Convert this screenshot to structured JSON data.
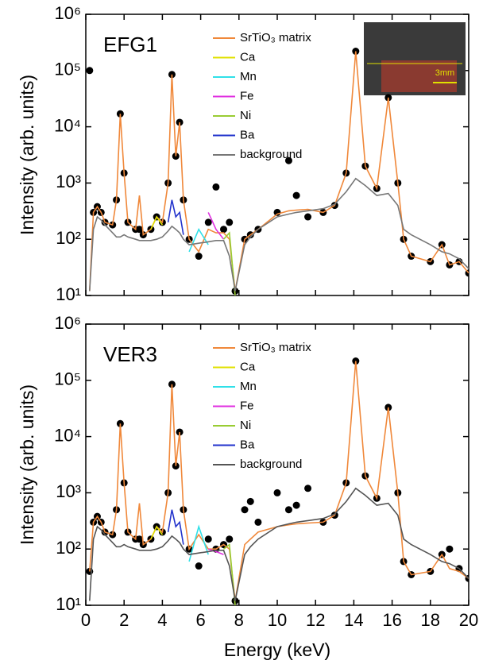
{
  "chart_data": [
    {
      "type": "line",
      "panel_label": "EFG1",
      "ylabel": "Intensity (arb. units)",
      "inset_label": "3mm",
      "log_y": true,
      "legend": "top-center",
      "xlim": [
        0,
        20
      ],
      "xticks": [
        0,
        2,
        4,
        6,
        8,
        10,
        12,
        14,
        16,
        18,
        20
      ],
      "ylim": [
        10,
        1000000
      ],
      "yticks": [
        {
          "value": 10,
          "label": "10¹"
        },
        {
          "value": 100,
          "label": "10²"
        },
        {
          "value": 1000,
          "label": "10³"
        },
        {
          "value": 10000,
          "label": "10⁴"
        },
        {
          "value": 100000,
          "label": "10⁵"
        },
        {
          "value": 1000000,
          "label": "10⁶"
        }
      ],
      "x": [
        0.2,
        0.4,
        0.6,
        0.8,
        1.0,
        1.4,
        1.6,
        1.8,
        2.0,
        2.2,
        2.6,
        2.8,
        3.0,
        3.4,
        3.7,
        4.0,
        4.3,
        4.5,
        4.7,
        4.9,
        5.1,
        5.4,
        5.9,
        6.4,
        6.8,
        7.2,
        7.5,
        7.8,
        8.3,
        8.6,
        9.0,
        10.0,
        10.6,
        11.0,
        11.6,
        12.4,
        13.0,
        13.6,
        14.1,
        14.6,
        15.2,
        15.8,
        16.3,
        16.6,
        17.0,
        18.0,
        18.6,
        19.0,
        19.5,
        20.0
      ],
      "series": [
        {
          "markers": true,
          "color": "#000000",
          "values": [
            100000,
            300,
            380,
            300,
            200,
            180,
            500,
            17000,
            1500,
            200,
            150,
            150,
            120,
            150,
            250,
            200,
            1000,
            85000,
            3000,
            12000,
            500,
            100,
            50,
            200,
            850,
            150,
            200,
            12,
            100,
            120,
            150,
            300,
            2500,
            600,
            250,
            300,
            400,
            1500,
            220000,
            2000,
            800,
            33000,
            1000,
            100,
            50,
            40,
            80,
            35,
            40,
            25
          ]
        },
        {
          "name": "SrTiO₃ matrix",
          "color": "#f0883a",
          "values": [
            12,
            300,
            380,
            300,
            200,
            180,
            500,
            17000,
            1500,
            200,
            150,
            600,
            120,
            150,
            250,
            200,
            1000,
            85000,
            3000,
            12000,
            500,
            100,
            60,
            150,
            130,
            130,
            100,
            12,
            100,
            120,
            150,
            280,
            320,
            330,
            340,
            300,
            400,
            1500,
            220000,
            2000,
            800,
            33000,
            1000,
            100,
            50,
            40,
            80,
            35,
            40,
            25
          ]
        },
        {
          "name": "Ca",
          "color": "#e0e000",
          "values": [
            null,
            null,
            null,
            null,
            null,
            null,
            null,
            null,
            null,
            null,
            null,
            null,
            null,
            150,
            250,
            180,
            null,
            null,
            null,
            null,
            null,
            null,
            null,
            null,
            null,
            null,
            null,
            null,
            null,
            null,
            null,
            null,
            null,
            null,
            null,
            null,
            null,
            null,
            null,
            null,
            null,
            null,
            null,
            null,
            null,
            null,
            null,
            null,
            null,
            null
          ]
        },
        {
          "name": "Mn",
          "color": "#30e0e8",
          "values": [
            null,
            null,
            null,
            null,
            null,
            null,
            null,
            null,
            null,
            null,
            null,
            null,
            null,
            null,
            null,
            null,
            null,
            null,
            null,
            null,
            null,
            60,
            150,
            80,
            null,
            null,
            null,
            null,
            null,
            null,
            null,
            null,
            null,
            null,
            null,
            null,
            null,
            null,
            null,
            null,
            null,
            null,
            null,
            null,
            null,
            null,
            null,
            null,
            null,
            null
          ]
        },
        {
          "name": "Fe",
          "color": "#e030e0",
          "values": [
            null,
            null,
            null,
            null,
            null,
            null,
            null,
            null,
            null,
            null,
            null,
            null,
            null,
            null,
            null,
            null,
            null,
            null,
            null,
            null,
            null,
            null,
            null,
            300,
            150,
            100,
            null,
            null,
            null,
            null,
            null,
            null,
            null,
            null,
            null,
            null,
            null,
            null,
            null,
            null,
            null,
            null,
            null,
            null,
            null,
            null,
            null,
            null,
            null,
            null
          ]
        },
        {
          "name": "Ni",
          "color": "#99cc33",
          "values": [
            null,
            null,
            null,
            null,
            null,
            null,
            null,
            null,
            null,
            null,
            null,
            null,
            null,
            null,
            null,
            null,
            null,
            null,
            null,
            null,
            null,
            null,
            null,
            null,
            null,
            100,
            130,
            10,
            null,
            null,
            null,
            null,
            null,
            null,
            null,
            null,
            null,
            null,
            null,
            null,
            null,
            null,
            null,
            null,
            null,
            null,
            null,
            null,
            null,
            null
          ]
        },
        {
          "name": "Ba",
          "color": "#2233cc",
          "values": [
            null,
            null,
            null,
            null,
            null,
            null,
            null,
            null,
            null,
            null,
            null,
            null,
            null,
            null,
            null,
            null,
            200,
            500,
            250,
            300,
            120,
            null,
            null,
            null,
            null,
            null,
            null,
            null,
            null,
            null,
            null,
            null,
            null,
            null,
            null,
            null,
            null,
            null,
            null,
            null,
            null,
            null,
            null,
            null,
            null,
            null,
            null,
            null,
            null,
            null
          ]
        },
        {
          "name": "background",
          "color": "#777777",
          "values": [
            12,
            150,
            250,
            220,
            180,
            130,
            110,
            110,
            120,
            110,
            100,
            95,
            95,
            95,
            100,
            110,
            140,
            170,
            150,
            130,
            100,
            80,
            85,
            90,
            95,
            95,
            50,
            12,
            80,
            110,
            150,
            250,
            280,
            300,
            320,
            350,
            420,
            700,
            1200,
            900,
            600,
            650,
            400,
            150,
            120,
            80,
            60,
            55,
            45,
            30
          ]
        }
      ]
    },
    {
      "type": "line",
      "panel_label": "VER3",
      "ylabel": "Intensity (arb. units)",
      "xlabel": "Energy (keV)",
      "log_y": true,
      "legend": "top-center",
      "xlim": [
        0,
        20
      ],
      "xticks": [
        0,
        2,
        4,
        6,
        8,
        10,
        12,
        14,
        16,
        18,
        20
      ],
      "ylim": [
        10,
        1000000
      ],
      "yticks": [
        {
          "value": 10,
          "label": "10¹"
        },
        {
          "value": 100,
          "label": "10²"
        },
        {
          "value": 1000,
          "label": "10³"
        },
        {
          "value": 10000,
          "label": "10⁴"
        },
        {
          "value": 100000,
          "label": "10⁵"
        },
        {
          "value": 1000000,
          "label": "10⁶"
        }
      ],
      "x": [
        0.2,
        0.4,
        0.6,
        0.8,
        1.0,
        1.4,
        1.6,
        1.8,
        2.0,
        2.2,
        2.6,
        2.8,
        3.0,
        3.4,
        3.7,
        4.0,
        4.3,
        4.5,
        4.7,
        4.9,
        5.1,
        5.4,
        5.9,
        6.4,
        6.8,
        7.2,
        7.5,
        7.8,
        8.3,
        8.6,
        9.0,
        10.0,
        10.6,
        11.0,
        11.6,
        12.4,
        13.0,
        13.6,
        14.1,
        14.6,
        15.2,
        15.8,
        16.3,
        16.6,
        17.0,
        18.0,
        18.6,
        19.0,
        19.5,
        20.0
      ],
      "series": [
        {
          "markers": true,
          "color": "#000000",
          "values": [
            40,
            300,
            380,
            300,
            200,
            180,
            500,
            17000,
            1500,
            200,
            150,
            150,
            120,
            150,
            250,
            200,
            1000,
            85000,
            3000,
            12000,
            500,
            100,
            50,
            150,
            100,
            120,
            150,
            12,
            500,
            700,
            300,
            1000,
            500,
            600,
            1200,
            300,
            400,
            1500,
            220000,
            2000,
            800,
            33000,
            1000,
            60,
            35,
            40,
            80,
            100,
            45,
            30
          ]
        },
        {
          "name": "SrTiO₃ matrix",
          "color": "#f0883a",
          "values": [
            40,
            300,
            380,
            300,
            200,
            180,
            500,
            17000,
            1500,
            200,
            150,
            650,
            120,
            150,
            250,
            200,
            1000,
            85000,
            3000,
            12000,
            500,
            100,
            180,
            100,
            100,
            120,
            100,
            12,
            120,
            150,
            200,
            250,
            270,
            280,
            290,
            300,
            400,
            1500,
            220000,
            2000,
            800,
            33000,
            1000,
            60,
            35,
            40,
            80,
            45,
            40,
            30
          ]
        },
        {
          "name": "Ca",
          "color": "#e0e000",
          "values": [
            null,
            null,
            null,
            null,
            null,
            null,
            null,
            null,
            null,
            null,
            null,
            null,
            null,
            150,
            250,
            180,
            null,
            null,
            null,
            null,
            null,
            null,
            null,
            null,
            null,
            null,
            null,
            null,
            null,
            null,
            null,
            null,
            null,
            null,
            null,
            null,
            null,
            null,
            null,
            null,
            null,
            null,
            null,
            null,
            null,
            null,
            null,
            null,
            null,
            null
          ]
        },
        {
          "name": "Mn",
          "color": "#30e0e8",
          "values": [
            null,
            null,
            null,
            null,
            null,
            null,
            null,
            null,
            null,
            null,
            null,
            null,
            null,
            null,
            null,
            null,
            null,
            null,
            null,
            null,
            null,
            60,
            250,
            80,
            null,
            null,
            null,
            null,
            null,
            null,
            null,
            null,
            null,
            null,
            null,
            null,
            null,
            null,
            null,
            null,
            null,
            null,
            null,
            null,
            null,
            null,
            null,
            null,
            null,
            null
          ]
        },
        {
          "name": "Fe",
          "color": "#e030e0",
          "values": [
            null,
            null,
            null,
            null,
            null,
            null,
            null,
            null,
            null,
            null,
            null,
            null,
            null,
            null,
            null,
            null,
            null,
            null,
            null,
            null,
            null,
            null,
            null,
            100,
            90,
            80,
            null,
            null,
            null,
            null,
            null,
            null,
            null,
            null,
            null,
            null,
            null,
            null,
            null,
            null,
            null,
            null,
            null,
            null,
            null,
            null,
            null,
            null,
            null,
            null
          ]
        },
        {
          "name": "Ni",
          "color": "#99cc33",
          "values": [
            null,
            null,
            null,
            null,
            null,
            null,
            null,
            null,
            null,
            null,
            null,
            null,
            null,
            null,
            null,
            null,
            null,
            null,
            null,
            null,
            null,
            null,
            null,
            null,
            null,
            100,
            120,
            10,
            null,
            null,
            null,
            null,
            null,
            null,
            null,
            null,
            null,
            null,
            null,
            null,
            null,
            null,
            null,
            null,
            null,
            null,
            null,
            null,
            null,
            null
          ]
        },
        {
          "name": "Ba",
          "color": "#2233cc",
          "values": [
            null,
            null,
            null,
            null,
            null,
            null,
            null,
            null,
            null,
            null,
            null,
            null,
            null,
            null,
            null,
            null,
            200,
            500,
            250,
            300,
            120,
            null,
            null,
            null,
            null,
            null,
            null,
            null,
            null,
            null,
            null,
            null,
            null,
            null,
            null,
            null,
            null,
            null,
            null,
            null,
            null,
            null,
            null,
            null,
            null,
            null,
            null,
            null,
            null,
            null
          ]
        },
        {
          "name": "background",
          "color": "#555555",
          "values": [
            12,
            150,
            250,
            220,
            180,
            130,
            110,
            110,
            120,
            110,
            100,
            95,
            95,
            95,
            100,
            110,
            140,
            170,
            150,
            130,
            100,
            80,
            85,
            90,
            95,
            95,
            50,
            12,
            80,
            110,
            150,
            250,
            280,
            300,
            320,
            350,
            420,
            700,
            1200,
            900,
            600,
            650,
            400,
            150,
            120,
            80,
            60,
            55,
            45,
            30
          ]
        }
      ]
    }
  ]
}
